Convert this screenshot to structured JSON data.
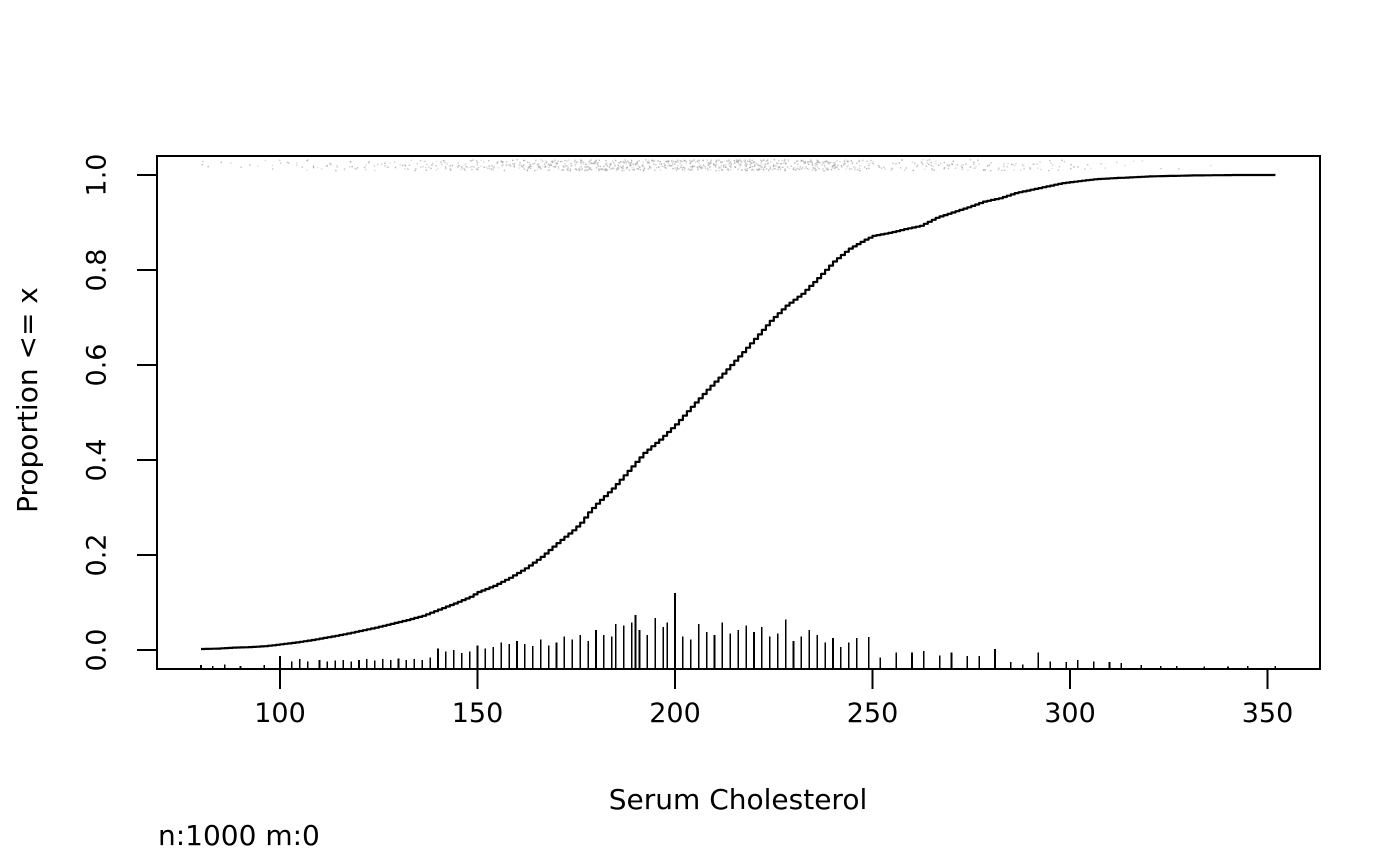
{
  "figure": {
    "background": "#ffffff",
    "foreground": "#000000"
  },
  "chart_data": {
    "type": "ecdf",
    "title": "",
    "xlabel": "Serum Cholesterol",
    "ylabel": "Proportion <= x",
    "annotation": "n:1000 m:0",
    "n": 1000,
    "m": 0,
    "x_ticks": [
      100,
      150,
      200,
      250,
      300,
      350
    ],
    "y_tick_labels": [
      "0.0",
      "0.2",
      "0.4",
      "0.6",
      "0.8",
      "1.0"
    ],
    "y_tick_values": [
      0.0,
      0.2,
      0.4,
      0.6,
      0.8,
      1.0
    ],
    "xlim": [
      69,
      364
    ],
    "ylim": [
      -0.04,
      1.035
    ],
    "grid": false,
    "legend": false,
    "line_color": "#000000",
    "rug_color": "#a8a8a8",
    "ecdf_points": [
      [
        80,
        0.002
      ],
      [
        84,
        0.003
      ],
      [
        88,
        0.005
      ],
      [
        92,
        0.006
      ],
      [
        96,
        0.008
      ],
      [
        100,
        0.012
      ],
      [
        104,
        0.016
      ],
      [
        108,
        0.021
      ],
      [
        112,
        0.027
      ],
      [
        116,
        0.033
      ],
      [
        120,
        0.04
      ],
      [
        124,
        0.047
      ],
      [
        128,
        0.055
      ],
      [
        132,
        0.063
      ],
      [
        136,
        0.072
      ],
      [
        140,
        0.085
      ],
      [
        144,
        0.098
      ],
      [
        148,
        0.112
      ],
      [
        150,
        0.122
      ],
      [
        154,
        0.135
      ],
      [
        158,
        0.152
      ],
      [
        162,
        0.172
      ],
      [
        166,
        0.196
      ],
      [
        170,
        0.225
      ],
      [
        174,
        0.252
      ],
      [
        176,
        0.268
      ],
      [
        178,
        0.29
      ],
      [
        180,
        0.308
      ],
      [
        184,
        0.34
      ],
      [
        188,
        0.377
      ],
      [
        192,
        0.415
      ],
      [
        196,
        0.443
      ],
      [
        200,
        0.475
      ],
      [
        204,
        0.512
      ],
      [
        208,
        0.548
      ],
      [
        212,
        0.582
      ],
      [
        216,
        0.618
      ],
      [
        220,
        0.655
      ],
      [
        224,
        0.693
      ],
      [
        228,
        0.725
      ],
      [
        232,
        0.75
      ],
      [
        236,
        0.783
      ],
      [
        240,
        0.818
      ],
      [
        244,
        0.845
      ],
      [
        248,
        0.864
      ],
      [
        250,
        0.872
      ],
      [
        254,
        0.878
      ],
      [
        258,
        0.886
      ],
      [
        262,
        0.893
      ],
      [
        266,
        0.91
      ],
      [
        270,
        0.921
      ],
      [
        274,
        0.932
      ],
      [
        278,
        0.944
      ],
      [
        282,
        0.951
      ],
      [
        286,
        0.962
      ],
      [
        290,
        0.969
      ],
      [
        294,
        0.976
      ],
      [
        298,
        0.983
      ],
      [
        302,
        0.987
      ],
      [
        306,
        0.991
      ],
      [
        310,
        0.993
      ],
      [
        315,
        0.995
      ],
      [
        320,
        0.997
      ],
      [
        325,
        0.998
      ],
      [
        330,
        0.999
      ],
      [
        336,
        0.9995
      ],
      [
        342,
        1.0
      ],
      [
        352,
        1.0
      ]
    ],
    "spike_histogram": {
      "max_height_frac": 0.16,
      "spikes": [
        [
          80,
          0.05
        ],
        [
          83,
          0.04
        ],
        [
          86,
          0.06
        ],
        [
          90,
          0.04
        ],
        [
          96,
          0.05
        ],
        [
          100,
          0.17
        ],
        [
          103,
          0.1
        ],
        [
          105,
          0.13
        ],
        [
          107,
          0.1
        ],
        [
          110,
          0.12
        ],
        [
          112,
          0.1
        ],
        [
          114,
          0.11
        ],
        [
          116,
          0.12
        ],
        [
          118,
          0.1
        ],
        [
          120,
          0.12
        ],
        [
          122,
          0.13
        ],
        [
          124,
          0.11
        ],
        [
          126,
          0.13
        ],
        [
          128,
          0.12
        ],
        [
          130,
          0.14
        ],
        [
          132,
          0.12
        ],
        [
          134,
          0.13
        ],
        [
          136,
          0.12
        ],
        [
          138,
          0.15
        ],
        [
          140,
          0.27
        ],
        [
          142,
          0.23
        ],
        [
          144,
          0.25
        ],
        [
          146,
          0.21
        ],
        [
          148,
          0.23
        ],
        [
          150,
          0.31
        ],
        [
          152,
          0.27
        ],
        [
          154,
          0.29
        ],
        [
          156,
          0.35
        ],
        [
          158,
          0.33
        ],
        [
          160,
          0.37
        ],
        [
          162,
          0.33
        ],
        [
          164,
          0.3
        ],
        [
          166,
          0.39
        ],
        [
          168,
          0.31
        ],
        [
          170,
          0.35
        ],
        [
          172,
          0.43
        ],
        [
          174,
          0.39
        ],
        [
          176,
          0.45
        ],
        [
          178,
          0.37
        ],
        [
          180,
          0.51
        ],
        [
          182,
          0.45
        ],
        [
          184,
          0.43
        ],
        [
          185,
          0.59
        ],
        [
          187,
          0.57
        ],
        [
          189,
          0.61
        ],
        [
          190,
          0.71
        ],
        [
          191,
          0.51
        ],
        [
          193,
          0.45
        ],
        [
          195,
          0.67
        ],
        [
          197,
          0.55
        ],
        [
          198,
          0.61
        ],
        [
          200,
          1.0
        ],
        [
          202,
          0.43
        ],
        [
          204,
          0.39
        ],
        [
          206,
          0.59
        ],
        [
          208,
          0.49
        ],
        [
          210,
          0.45
        ],
        [
          212,
          0.61
        ],
        [
          214,
          0.47
        ],
        [
          216,
          0.51
        ],
        [
          218,
          0.57
        ],
        [
          220,
          0.49
        ],
        [
          222,
          0.55
        ],
        [
          224,
          0.43
        ],
        [
          226,
          0.47
        ],
        [
          228,
          0.65
        ],
        [
          230,
          0.37
        ],
        [
          232,
          0.43
        ],
        [
          234,
          0.51
        ],
        [
          236,
          0.45
        ],
        [
          238,
          0.35
        ],
        [
          240,
          0.41
        ],
        [
          242,
          0.29
        ],
        [
          244,
          0.35
        ],
        [
          246,
          0.41
        ],
        [
          249,
          0.42
        ],
        [
          252,
          0.15
        ],
        [
          256,
          0.22
        ],
        [
          260,
          0.22
        ],
        [
          263,
          0.24
        ],
        [
          267,
          0.18
        ],
        [
          270,
          0.22
        ],
        [
          274,
          0.17
        ],
        [
          277,
          0.17
        ],
        [
          281,
          0.26
        ],
        [
          285,
          0.09
        ],
        [
          288,
          0.06
        ],
        [
          292,
          0.22
        ],
        [
          295,
          0.1
        ],
        [
          299,
          0.09
        ],
        [
          302,
          0.12
        ],
        [
          306,
          0.1
        ],
        [
          310,
          0.09
        ],
        [
          313,
          0.08
        ],
        [
          318,
          0.05
        ],
        [
          323,
          0.04
        ],
        [
          327,
          0.04
        ],
        [
          334,
          0.03
        ],
        [
          340,
          0.03
        ],
        [
          345,
          0.04
        ],
        [
          352,
          0.04
        ]
      ]
    },
    "rug": {
      "n_points": 1000,
      "position": "top"
    }
  }
}
